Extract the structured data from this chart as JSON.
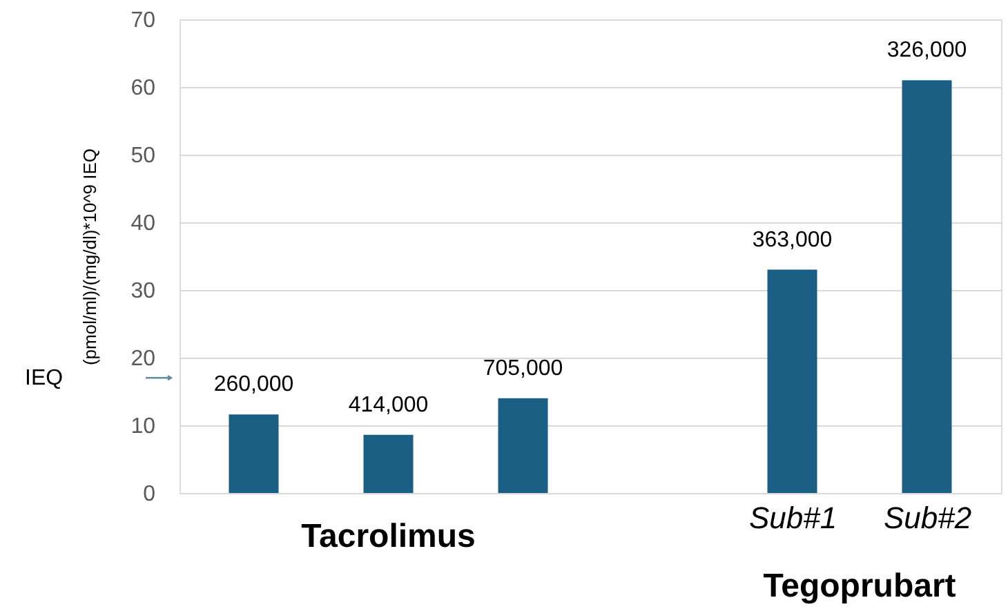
{
  "chart_data": {
    "type": "bar",
    "ylabel": "(pmol/ml)/(mg/dl)*10^9 IEQ",
    "categories": [
      null,
      null,
      null,
      null,
      "Sub#1",
      "Sub#2"
    ],
    "values": [
      11.6,
      8.6,
      14,
      null,
      33,
      61
    ],
    "color": "#1a5f83",
    "ylim": [
      0,
      70
    ],
    "yticks": [
      0,
      10,
      20,
      30,
      40,
      50,
      60,
      70
    ],
    "grid": "y",
    "annotations": [
      "260,000",
      "414,000",
      "705,000",
      "363,000",
      "326,000",
      "Tacrolimus",
      "Tegoprubart",
      "IEQ"
    ]
  }
}
